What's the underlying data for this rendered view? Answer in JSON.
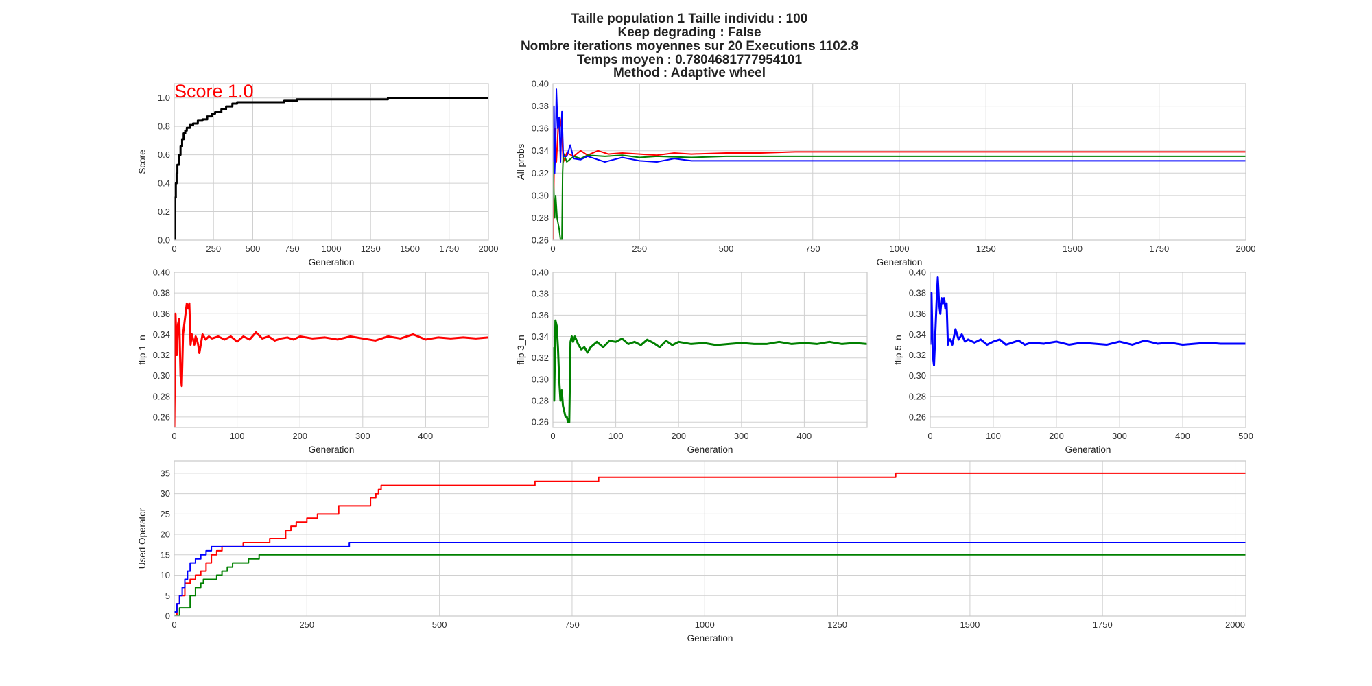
{
  "figure": {
    "suptitle_lines": [
      "Taille population  1 Taille individu : 100",
      "Keep degrading : False",
      "Nombre iterations moyennes sur 20 Executions 1102.8",
      "Temps moyen : 0.7804681777954101",
      "Method : Adaptive wheel"
    ]
  },
  "colors": {
    "score": "#000000",
    "flip1": "#ff0000",
    "flip3": "#008000",
    "flip5": "#0000ff",
    "grid": "#d0d0d0",
    "spine": "#c8c8c8"
  },
  "chart_data": [
    {
      "id": "score",
      "type": "line",
      "xlabel": "Generation",
      "ylabel": "Score",
      "annotation": "Score 1.0",
      "annotation_color": "#ff0000",
      "xlim": [
        0,
        2000
      ],
      "ylim": [
        0,
        1.1
      ],
      "xticks": [
        0,
        250,
        500,
        750,
        1000,
        1250,
        1500,
        1750,
        2000
      ],
      "yticks": [
        0.0,
        0.2,
        0.4,
        0.6,
        0.8,
        1.0
      ],
      "ytick_decimals": 1,
      "step": true,
      "series": [
        {
          "color": "#000000",
          "width": 3,
          "x": [
            0,
            5,
            10,
            15,
            20,
            30,
            40,
            50,
            60,
            70,
            80,
            100,
            120,
            150,
            180,
            210,
            240,
            260,
            300,
            330,
            370,
            400,
            420,
            700,
            780,
            1360,
            2000
          ],
          "y": [
            0.0,
            0.3,
            0.4,
            0.47,
            0.53,
            0.6,
            0.66,
            0.71,
            0.75,
            0.77,
            0.79,
            0.81,
            0.82,
            0.84,
            0.85,
            0.87,
            0.89,
            0.9,
            0.92,
            0.94,
            0.96,
            0.97,
            0.97,
            0.98,
            0.99,
            1.0,
            1.0
          ]
        }
      ]
    },
    {
      "id": "allprobs",
      "type": "line",
      "xlabel": "Generation",
      "ylabel": "All probs",
      "xlim": [
        0,
        2000
      ],
      "ylim": [
        0.26,
        0.4
      ],
      "xticks": [
        0,
        250,
        500,
        750,
        1000,
        1250,
        1500,
        1750,
        2000
      ],
      "yticks": [
        0.26,
        0.28,
        0.3,
        0.32,
        0.34,
        0.36,
        0.38,
        0.4
      ],
      "ytick_decimals": 2,
      "series": [
        {
          "color": "#ff0000",
          "width": 2,
          "x": [
            0,
            5,
            10,
            15,
            20,
            25,
            30,
            40,
            60,
            80,
            100,
            130,
            160,
            200,
            250,
            300,
            350,
            400,
            500,
            600,
            700,
            800,
            900,
            1000,
            1300,
            2000
          ],
          "y": [
            0.25,
            0.36,
            0.33,
            0.36,
            0.37,
            0.36,
            0.33,
            0.338,
            0.335,
            0.34,
            0.336,
            0.34,
            0.337,
            0.338,
            0.337,
            0.336,
            0.338,
            0.337,
            0.338,
            0.338,
            0.339,
            0.339,
            0.339,
            0.339,
            0.339,
            0.339
          ]
        },
        {
          "color": "#008000",
          "width": 2,
          "x": [
            0,
            5,
            8,
            12,
            18,
            22,
            26,
            28,
            30,
            40,
            60,
            80,
            100,
            150,
            200,
            250,
            300,
            400,
            500,
            600,
            700,
            800,
            900,
            1000,
            1340,
            2000
          ],
          "y": [
            0.33,
            0.28,
            0.3,
            0.28,
            0.27,
            0.26,
            0.26,
            0.32,
            0.338,
            0.33,
            0.335,
            0.333,
            0.336,
            0.335,
            0.336,
            0.334,
            0.335,
            0.334,
            0.335,
            0.335,
            0.335,
            0.335,
            0.335,
            0.335,
            0.335,
            0.335
          ]
        },
        {
          "color": "#0000ff",
          "width": 2,
          "x": [
            0,
            3,
            5,
            8,
            10,
            14,
            18,
            22,
            26,
            30,
            40,
            50,
            60,
            80,
            100,
            150,
            200,
            250,
            300,
            350,
            400,
            500,
            600,
            700,
            800,
            1000,
            2000
          ],
          "y": [
            0.33,
            0.38,
            0.32,
            0.35,
            0.395,
            0.36,
            0.37,
            0.33,
            0.375,
            0.335,
            0.335,
            0.345,
            0.333,
            0.332,
            0.335,
            0.33,
            0.334,
            0.331,
            0.33,
            0.333,
            0.331,
            0.331,
            0.331,
            0.331,
            0.331,
            0.331,
            0.331
          ]
        }
      ]
    },
    {
      "id": "flip1",
      "type": "line",
      "xlabel": "Generation",
      "ylabel": "flip 1_n",
      "xlim": [
        0,
        500
      ],
      "ylim": [
        0.25,
        0.4
      ],
      "xticks": [
        0,
        100,
        200,
        300,
        400
      ],
      "yticks": [
        0.26,
        0.28,
        0.3,
        0.32,
        0.34,
        0.36,
        0.38,
        0.4
      ],
      "ytick_decimals": 2,
      "series": [
        {
          "color": "#ff0000",
          "width": 3,
          "x": [
            0,
            2,
            4,
            6,
            8,
            10,
            12,
            14,
            16,
            18,
            20,
            22,
            24,
            26,
            28,
            30,
            32,
            34,
            36,
            38,
            40,
            45,
            50,
            55,
            60,
            70,
            80,
            90,
            100,
            110,
            120,
            130,
            140,
            150,
            160,
            170,
            180,
            190,
            200,
            220,
            240,
            260,
            280,
            300,
            320,
            340,
            360,
            380,
            400,
            420,
            440,
            460,
            480,
            500
          ],
          "y": [
            0.25,
            0.36,
            0.32,
            0.35,
            0.355,
            0.3,
            0.29,
            0.34,
            0.35,
            0.36,
            0.37,
            0.365,
            0.37,
            0.33,
            0.34,
            0.335,
            0.33,
            0.338,
            0.335,
            0.33,
            0.322,
            0.34,
            0.335,
            0.338,
            0.336,
            0.338,
            0.335,
            0.338,
            0.333,
            0.338,
            0.335,
            0.342,
            0.336,
            0.338,
            0.334,
            0.336,
            0.337,
            0.335,
            0.338,
            0.336,
            0.337,
            0.335,
            0.338,
            0.336,
            0.334,
            0.338,
            0.336,
            0.34,
            0.335,
            0.337,
            0.336,
            0.337,
            0.336,
            0.337
          ]
        }
      ]
    },
    {
      "id": "flip3",
      "type": "line",
      "xlabel": "Generation",
      "ylabel": "flip 3_n",
      "xlim": [
        0,
        500
      ],
      "ylim": [
        0.255,
        0.4
      ],
      "xticks": [
        0,
        100,
        200,
        300,
        400
      ],
      "yticks": [
        0.26,
        0.28,
        0.3,
        0.32,
        0.34,
        0.36,
        0.38,
        0.4
      ],
      "ytick_decimals": 2,
      "series": [
        {
          "color": "#008000",
          "width": 3,
          "x": [
            0,
            2,
            4,
            6,
            8,
            10,
            12,
            14,
            16,
            18,
            20,
            22,
            24,
            26,
            28,
            30,
            32,
            35,
            40,
            45,
            50,
            55,
            60,
            70,
            80,
            90,
            100,
            110,
            120,
            130,
            140,
            150,
            160,
            170,
            180,
            190,
            200,
            220,
            240,
            260,
            280,
            300,
            320,
            340,
            360,
            380,
            400,
            420,
            440,
            460,
            480,
            500
          ],
          "y": [
            0.33,
            0.28,
            0.355,
            0.35,
            0.33,
            0.3,
            0.28,
            0.29,
            0.275,
            0.27,
            0.265,
            0.265,
            0.26,
            0.26,
            0.335,
            0.34,
            0.335,
            0.34,
            0.333,
            0.328,
            0.33,
            0.325,
            0.33,
            0.335,
            0.33,
            0.336,
            0.335,
            0.338,
            0.333,
            0.335,
            0.332,
            0.337,
            0.334,
            0.33,
            0.336,
            0.332,
            0.335,
            0.333,
            0.334,
            0.332,
            0.333,
            0.334,
            0.333,
            0.333,
            0.335,
            0.333,
            0.334,
            0.333,
            0.335,
            0.333,
            0.334,
            0.333
          ]
        }
      ]
    },
    {
      "id": "flip5",
      "type": "line",
      "xlabel": "Generation",
      "ylabel": "flip 5_n",
      "xlim": [
        0,
        500
      ],
      "ylim": [
        0.25,
        0.4
      ],
      "xticks": [
        0,
        100,
        200,
        300,
        400,
        500
      ],
      "yticks": [
        0.26,
        0.28,
        0.3,
        0.32,
        0.34,
        0.36,
        0.38,
        0.4
      ],
      "ytick_decimals": 2,
      "series": [
        {
          "color": "#0000ff",
          "width": 3,
          "x": [
            0,
            2,
            4,
            6,
            8,
            10,
            12,
            14,
            16,
            18,
            20,
            22,
            24,
            26,
            28,
            30,
            32,
            35,
            40,
            45,
            50,
            55,
            60,
            70,
            80,
            90,
            100,
            110,
            120,
            130,
            140,
            150,
            160,
            180,
            200,
            220,
            240,
            260,
            280,
            300,
            320,
            340,
            360,
            380,
            400,
            420,
            440,
            460,
            480,
            500
          ],
          "y": [
            0.33,
            0.38,
            0.32,
            0.31,
            0.34,
            0.37,
            0.395,
            0.37,
            0.36,
            0.375,
            0.37,
            0.375,
            0.365,
            0.37,
            0.33,
            0.335,
            0.335,
            0.33,
            0.345,
            0.335,
            0.34,
            0.333,
            0.335,
            0.332,
            0.335,
            0.33,
            0.333,
            0.335,
            0.33,
            0.332,
            0.334,
            0.33,
            0.332,
            0.331,
            0.333,
            0.33,
            0.332,
            0.331,
            0.33,
            0.333,
            0.33,
            0.334,
            0.331,
            0.332,
            0.33,
            0.331,
            0.332,
            0.331,
            0.331,
            0.331
          ]
        }
      ]
    },
    {
      "id": "usedop",
      "type": "line",
      "xlabel": "Generation",
      "ylabel": "Used Operator",
      "xlim": [
        0,
        2020
      ],
      "ylim": [
        0,
        38
      ],
      "xticks": [
        0,
        250,
        500,
        750,
        1000,
        1250,
        1500,
        1750,
        2000
      ],
      "yticks": [
        0,
        5,
        10,
        15,
        20,
        25,
        30,
        35
      ],
      "ytick_decimals": 0,
      "step": true,
      "series": [
        {
          "color": "#ff0000",
          "width": 2,
          "x": [
            0,
            5,
            10,
            20,
            30,
            40,
            50,
            60,
            70,
            80,
            90,
            130,
            180,
            210,
            220,
            230,
            250,
            270,
            310,
            370,
            380,
            385,
            390,
            440,
            680,
            800,
            1360,
            2020
          ],
          "y": [
            0,
            3,
            5,
            8,
            9,
            10,
            11,
            13,
            15,
            16,
            17,
            18,
            19,
            21,
            22,
            23,
            24,
            25,
            27,
            29,
            30,
            31,
            32,
            32,
            33,
            34,
            35,
            35
          ]
        },
        {
          "color": "#0000ff",
          "width": 2,
          "x": [
            0,
            5,
            10,
            15,
            20,
            25,
            30,
            40,
            50,
            60,
            70,
            100,
            200,
            330,
            2020
          ],
          "y": [
            1,
            3,
            5,
            7,
            9,
            11,
            13,
            14,
            15,
            16,
            17,
            17,
            17,
            18,
            18
          ]
        },
        {
          "color": "#008000",
          "width": 2,
          "x": [
            0,
            10,
            30,
            40,
            50,
            55,
            80,
            90,
            100,
            110,
            140,
            160,
            2020
          ],
          "y": [
            0,
            2,
            5,
            7,
            8,
            9,
            10,
            11,
            12,
            13,
            14,
            15,
            15
          ]
        }
      ]
    }
  ]
}
